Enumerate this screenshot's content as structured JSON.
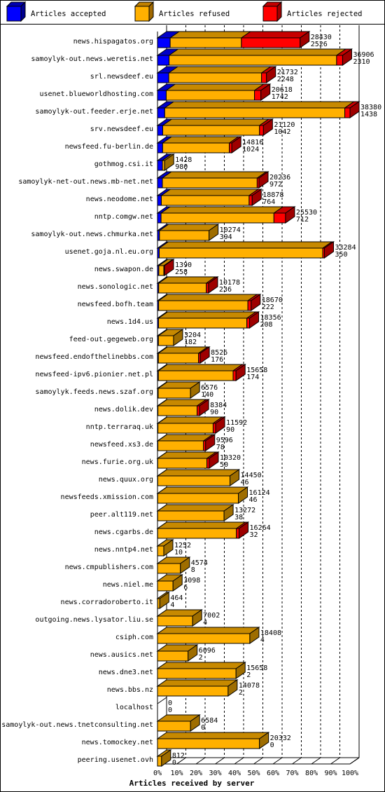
{
  "legend": {
    "accepted": "Articles accepted",
    "refused": "Articles refused",
    "rejected": "Articles rejected"
  },
  "colors": {
    "accepted": "#0000ff",
    "refused": "#ffb000",
    "rejected": "#ff0000",
    "grid": "#000000",
    "background": "#ffffff"
  },
  "chart_data": {
    "type": "bar",
    "orientation": "horizontal",
    "stacked": true,
    "xlabel": "Articles received by server",
    "ylabel": "",
    "xlim": [
      0,
      100
    ],
    "x_unit": "%",
    "x_ticks": [
      "0%",
      "10%",
      "20%",
      "30%",
      "40%",
      "50%",
      "60%",
      "70%",
      "80%",
      "90%",
      "100%"
    ],
    "grid": "vertical dashed",
    "legend_position": "top",
    "max_total": 38380,
    "series": [
      {
        "name": "Articles accepted",
        "key": "accepted"
      },
      {
        "name": "Articles refused",
        "key": "refused"
      },
      {
        "name": "Articles rejected",
        "key": "rejected"
      }
    ],
    "rows": [
      {
        "server": "news.hispagatos.org",
        "received": 28430,
        "accepted": 2526,
        "refused": 14200,
        "rejected": 11704
      },
      {
        "server": "samoylyk-out.news.weretis.net",
        "received": 36906,
        "accepted": 2310,
        "refused": 33400,
        "rejected": 1196
      },
      {
        "server": "srl.newsdeef.eu",
        "received": 21732,
        "accepted": 2248,
        "refused": 18500,
        "rejected": 984
      },
      {
        "server": "usenet.blueworldhosting.com",
        "received": 20618,
        "accepted": 1742,
        "refused": 17600,
        "rejected": 1276
      },
      {
        "server": "samoylyk-out.feeder.erje.net",
        "received": 38380,
        "accepted": 1438,
        "refused": 35900,
        "rejected": 1042
      },
      {
        "server": "srv.newsdeef.eu",
        "received": 21120,
        "accepted": 1042,
        "refused": 19300,
        "rejected": 778
      },
      {
        "server": "newsfeed.fu-berlin.de",
        "received": 14816,
        "accepted": 1024,
        "refused": 13300,
        "rejected": 492
      },
      {
        "server": "gothmog.csi.it",
        "received": 1428,
        "accepted": 980,
        "refused": 448,
        "rejected": 0
      },
      {
        "server": "samoylyk-net-out.news.mb-net.net",
        "received": 20236,
        "accepted": 972,
        "refused": 18900,
        "rejected": 364
      },
      {
        "server": "news.neodome.net",
        "received": 18878,
        "accepted": 764,
        "refused": 17500,
        "rejected": 614
      },
      {
        "server": "nntp.comgw.net",
        "received": 25530,
        "accepted": 712,
        "refused": 22500,
        "rejected": 2318
      },
      {
        "server": "samoylyk-out.news.chmurka.net",
        "received": 10274,
        "accepted": 394,
        "refused": 9880,
        "rejected": 0
      },
      {
        "server": "usenet.goja.nl.eu.org",
        "received": 33284,
        "accepted": 350,
        "refused": 32600,
        "rejected": 334
      },
      {
        "server": "news.swapon.de",
        "received": 1390,
        "accepted": 258,
        "refused": 1000,
        "rejected": 132
      },
      {
        "server": "news.sonologic.net",
        "received": 10178,
        "accepted": 236,
        "refused": 9500,
        "rejected": 442
      },
      {
        "server": "newsfeed.bofh.team",
        "received": 18670,
        "accepted": 222,
        "refused": 17800,
        "rejected": 648
      },
      {
        "server": "news.1d4.us",
        "received": 18356,
        "accepted": 208,
        "refused": 17600,
        "rejected": 548
      },
      {
        "server": "feed-out.gegeweb.org",
        "received": 3204,
        "accepted": 182,
        "refused": 3022,
        "rejected": 0
      },
      {
        "server": "newsfeed.endofthelinebbs.com",
        "received": 8526,
        "accepted": 176,
        "refused": 8000,
        "rejected": 350
      },
      {
        "server": "newsfeed-ipv6.pionier.net.pl",
        "received": 15658,
        "accepted": 174,
        "refused": 14900,
        "rejected": 584
      },
      {
        "server": "samoylyk.feeds.news.szaf.org",
        "received": 6576,
        "accepted": 140,
        "refused": 6436,
        "rejected": 0
      },
      {
        "server": "news.dolik.dev",
        "received": 8384,
        "accepted": 90,
        "refused": 7800,
        "rejected": 494
      },
      {
        "server": "nntp.terraraq.uk",
        "received": 11592,
        "accepted": 90,
        "refused": 11000,
        "rejected": 502
      },
      {
        "server": "newsfeed.xs3.de",
        "received": 9596,
        "accepted": 78,
        "refused": 9100,
        "rejected": 418
      },
      {
        "server": "news.furie.org.uk",
        "received": 10320,
        "accepted": 50,
        "refused": 9800,
        "rejected": 470
      },
      {
        "server": "news.quux.org",
        "received": 14450,
        "accepted": 46,
        "refused": 14404,
        "rejected": 0
      },
      {
        "server": "newsfeeds.xmission.com",
        "received": 16124,
        "accepted": 46,
        "refused": 16078,
        "rejected": 0
      },
      {
        "server": "peer.alt119.net",
        "received": 13272,
        "accepted": 38,
        "refused": 13234,
        "rejected": 0
      },
      {
        "server": "news.cgarbs.de",
        "received": 16264,
        "accepted": 32,
        "refused": 15700,
        "rejected": 532
      },
      {
        "server": "news.nntp4.net",
        "received": 1252,
        "accepted": 10,
        "refused": 1242,
        "rejected": 0
      },
      {
        "server": "news.cmpublishers.com",
        "received": 4574,
        "accepted": 8,
        "refused": 4566,
        "rejected": 0
      },
      {
        "server": "news.niel.me",
        "received": 3098,
        "accepted": 6,
        "refused": 3092,
        "rejected": 0
      },
      {
        "server": "news.corradoroberto.it",
        "received": 464,
        "accepted": 4,
        "refused": 460,
        "rejected": 0
      },
      {
        "server": "outgoing.news.lysator.liu.se",
        "received": 7002,
        "accepted": 4,
        "refused": 6998,
        "rejected": 0
      },
      {
        "server": "csiph.com",
        "received": 18408,
        "accepted": 4,
        "refused": 18404,
        "rejected": 0
      },
      {
        "server": "news.ausics.net",
        "received": 6096,
        "accepted": 2,
        "refused": 6094,
        "rejected": 0
      },
      {
        "server": "news.dne3.net",
        "received": 15658,
        "accepted": 2,
        "refused": 15656,
        "rejected": 0
      },
      {
        "server": "news.bbs.nz",
        "received": 14078,
        "accepted": 2,
        "refused": 14076,
        "rejected": 0
      },
      {
        "server": "localhost",
        "received": 0,
        "accepted": 0,
        "refused": 0,
        "rejected": 0
      },
      {
        "server": "samoylyk-out.news.tnetconsulting.net",
        "received": 6584,
        "accepted": 0,
        "refused": 6584,
        "rejected": 0
      },
      {
        "server": "news.tomockey.net",
        "received": 20332,
        "accepted": 0,
        "refused": 20332,
        "rejected": 0
      },
      {
        "server": "peering.usenet.ovh",
        "received": 812,
        "accepted": 0,
        "refused": 812,
        "rejected": 0
      }
    ]
  }
}
